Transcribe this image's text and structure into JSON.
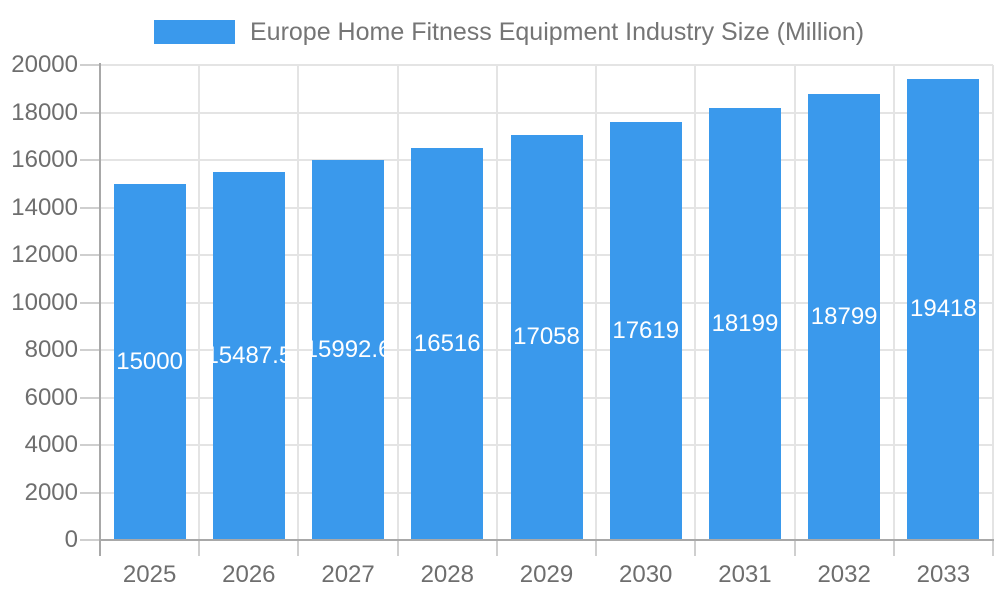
{
  "chart_data": {
    "type": "bar",
    "title": "Europe Home Fitness Equipment Industry Size (Million)",
    "legend": {
      "position": "top",
      "label": "Europe Home Fitness Equipment Industry Size (Million)"
    },
    "categories": [
      "2025",
      "2026",
      "2027",
      "2028",
      "2029",
      "2030",
      "2031",
      "2032",
      "2033"
    ],
    "values": [
      15000,
      15487.5,
      15992.6,
      16516,
      17058,
      17619,
      18199,
      18799,
      19418
    ],
    "value_labels": [
      "15000",
      "15487.5",
      "15992.6",
      "16516",
      "17058",
      "17619",
      "18199",
      "18799",
      "19418"
    ],
    "xlabel": "",
    "ylabel": "",
    "ylim": [
      0,
      20000
    ],
    "yticks": [
      0,
      2000,
      4000,
      6000,
      8000,
      10000,
      12000,
      14000,
      16000,
      18000,
      20000
    ],
    "ytick_labels": [
      "0",
      "2000",
      "4000",
      "6000",
      "8000",
      "10000",
      "12000",
      "14000",
      "16000",
      "18000",
      "20000"
    ],
    "grid": true
  },
  "colors": {
    "bar": "#3A99EC",
    "title_text": "#757575",
    "axis_text": "#6E6E6E",
    "grid_line": "#E4E4E4",
    "tick_line": "#CFCFCF",
    "axis_line": "#A8A8A8",
    "value_label_text": "#FFFFFF",
    "background": "#FFFFFF"
  }
}
